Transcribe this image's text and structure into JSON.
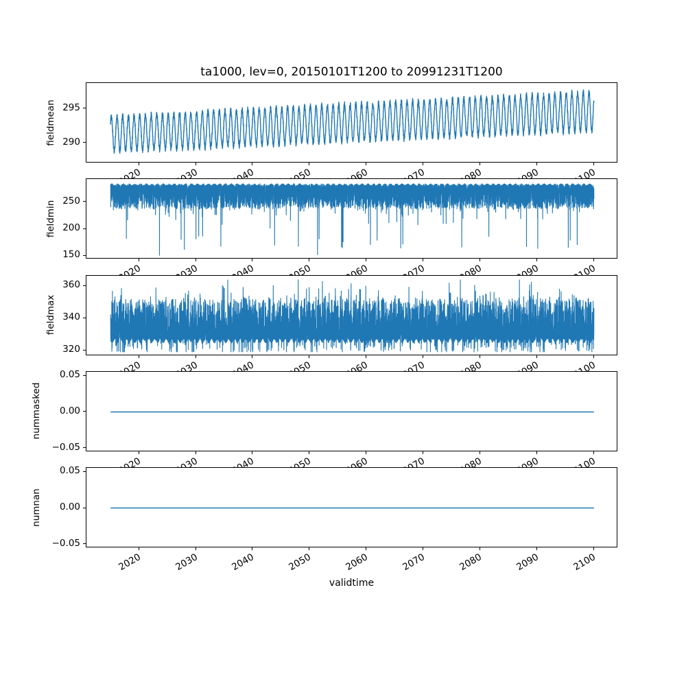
{
  "figure": {
    "title": "ta1000, lev=0, 20150101T1200 to 20991231T1200",
    "background": "#ffffff",
    "axis_color": "#000000",
    "line_color": "#1f77b4",
    "x_axis": {
      "label": "validtime",
      "ticks": [
        2020,
        2030,
        2040,
        2050,
        2060,
        2070,
        2080,
        2090,
        2100
      ],
      "tick_labels": [
        "2020",
        "2030",
        "2040",
        "2050",
        "2060",
        "2070",
        "2080",
        "2090",
        "2100"
      ],
      "xlim": [
        2010.75,
        2104.25
      ],
      "data_start_year": 2015.0,
      "data_end_year": 2100.0
    }
  },
  "chart_data": [
    {
      "type": "line",
      "name": "fieldmean",
      "ylabel": "fieldmean",
      "yticks": [
        290,
        295
      ],
      "ytick_labels": [
        "290",
        "295"
      ],
      "ylim": [
        287.0,
        298.7
      ],
      "approx_value_range": [
        287.9,
        298.2
      ],
      "generator": {
        "kind": "seasonal",
        "points": 4200,
        "base": 291.25,
        "trend_per_year": 0.039,
        "amplitude": 2.55,
        "amplitude_growth": 0.3,
        "noise": 0.42,
        "period_years": 1,
        "phase": 0.12
      }
    },
    {
      "type": "line",
      "name": "fieldmin",
      "ylabel": "fieldmin",
      "yticks": [
        150,
        200,
        250
      ],
      "ytick_labels": [
        "150",
        "200",
        "250"
      ],
      "ylim": [
        142.9,
        292.3
      ],
      "approx_value_range": [
        150.3,
        285.5
      ],
      "generator": {
        "kind": "noisy_min",
        "points": 7000,
        "top": 282,
        "band_depth": 45,
        "band_power": 2.2,
        "seasonal_amp": 1.5,
        "spike_prob": 0.05,
        "spike_extra_max": 40,
        "deep_spike_prob": 0.0025,
        "deep_level": 158,
        "deep_span": 30,
        "clamp": [
          150.3,
          285.5
        ],
        "fixed_spikes": [
          [
            2023.6,
            150.3
          ],
          [
            2030.5,
            186.0
          ],
          [
            2051.4,
            151.5
          ]
        ]
      }
    },
    {
      "type": "line",
      "name": "fieldmax",
      "ylabel": "fieldmax",
      "yticks": [
        320,
        340,
        360
      ],
      "ytick_labels": [
        "320",
        "340",
        "360"
      ],
      "ylim": [
        316.6,
        366.4
      ],
      "approx_value_range": [
        319.2,
        363.9
      ],
      "generator": {
        "kind": "noisy_max",
        "points": 7000,
        "bottom": 326,
        "band_height": 26,
        "band_power": 2.6,
        "seasonal_amp": 1.2,
        "spike_prob": 0.06,
        "spike_extra_max": 16,
        "fringe_prob": 0.04,
        "fringe_depth": 6.5,
        "tall_spike_prob": 0.002,
        "tall_level": 352,
        "tall_span": 11,
        "clamp": [
          319.2,
          363.9
        ],
        "fixed_spikes": [
          [
            2035.6,
            363.8
          ],
          [
            2057.3,
            361.5
          ],
          [
            2089.0,
            362.5
          ]
        ]
      }
    },
    {
      "type": "line",
      "name": "nummasked",
      "ylabel": "nummasked",
      "yticks": [
        -0.05,
        0,
        0.05
      ],
      "ytick_labels": [
        "−0.05",
        "0.00",
        "0.05"
      ],
      "ylim": [
        -0.0555,
        0.0555
      ],
      "approx_value_range": [
        0,
        0
      ],
      "generator": {
        "kind": "constant",
        "points": 2,
        "value": 0
      }
    },
    {
      "type": "line",
      "name": "numnan",
      "ylabel": "numnan",
      "yticks": [
        -0.05,
        0,
        0.05
      ],
      "ytick_labels": [
        "−0.05",
        "0.00",
        "0.05"
      ],
      "ylim": [
        -0.0555,
        0.0555
      ],
      "approx_value_range": [
        0,
        0
      ],
      "generator": {
        "kind": "constant",
        "points": 2,
        "value": 0
      }
    }
  ]
}
